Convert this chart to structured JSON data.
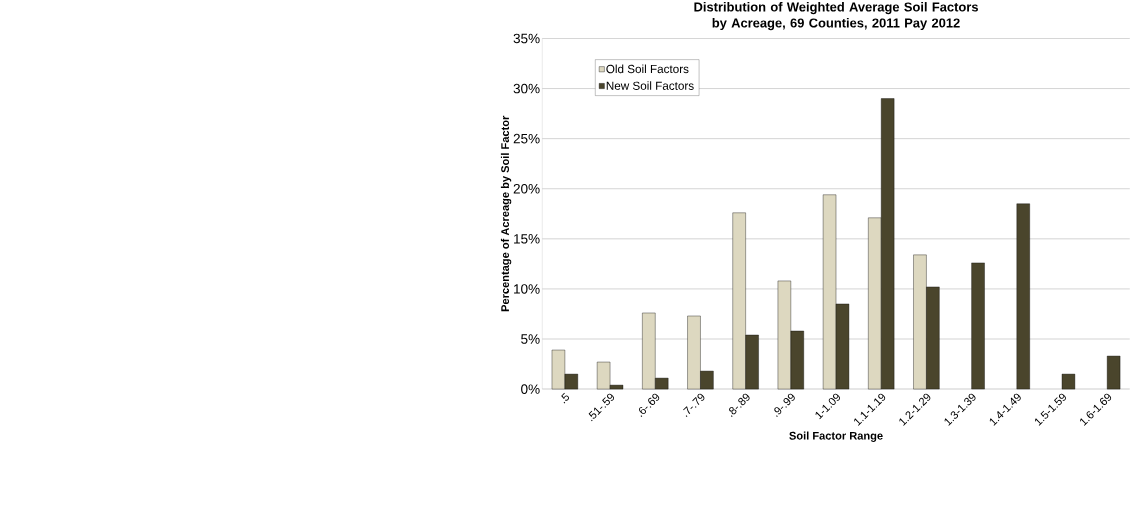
{
  "chart_data": {
    "type": "bar",
    "title": "Distribution of Weighted Average Soil Factors by Acreage, 69 Counties, 2011 Pay 2012",
    "xlabel": "Soil Factor Range",
    "ylabel": "Percentage of Acreage by Soil Factor",
    "categories": [
      ".5",
      ".51-.59",
      ".6-.69",
      ".7-.79",
      ".8-.89",
      ".9-.99",
      "1-1.09",
      "1.1-1.19",
      "1.2-1.29",
      "1.3-1.39",
      "1.4-1.49",
      "1.5-1.59",
      "1.6-1.69"
    ],
    "series": [
      {
        "name": "Old Soil Factors",
        "color": "#ddd8c0",
        "values": [
          3.9,
          2.7,
          7.6,
          7.3,
          17.6,
          10.8,
          19.4,
          17.1,
          13.4,
          null,
          null,
          null,
          null
        ]
      },
      {
        "name": "New Soil Factors",
        "color": "#4a452c",
        "values": [
          1.5,
          0.4,
          1.1,
          1.8,
          5.4,
          5.8,
          8.5,
          29.0,
          10.2,
          12.6,
          18.5,
          1.5,
          3.3
        ]
      }
    ],
    "ylim": [
      0,
      35
    ],
    "yticks": [
      {
        "value": 0,
        "label": "0%"
      },
      {
        "value": 5,
        "label": "5%"
      },
      {
        "value": 10,
        "label": "10%"
      },
      {
        "value": 15,
        "label": "15%"
      },
      {
        "value": 20,
        "label": "20%"
      },
      {
        "value": 25,
        "label": "25%"
      },
      {
        "value": 30,
        "label": "30%"
      },
      {
        "value": 35,
        "label": "35%"
      }
    ],
    "grid": "y",
    "legend": "top left"
  }
}
